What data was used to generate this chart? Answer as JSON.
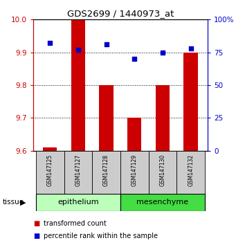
{
  "title": "GDS2699 / 1440973_at",
  "samples": [
    "GSM147125",
    "GSM147127",
    "GSM147128",
    "GSM147129",
    "GSM147130",
    "GSM147132"
  ],
  "bar_values": [
    9.61,
    10.0,
    9.8,
    9.7,
    9.8,
    9.9
  ],
  "dot_pct": [
    82,
    77,
    81,
    70,
    75,
    78
  ],
  "ylim": [
    9.6,
    10.0
  ],
  "y2lim": [
    0,
    100
  ],
  "yticks": [
    9.6,
    9.7,
    9.8,
    9.9,
    10.0
  ],
  "y2ticks": [
    0,
    25,
    50,
    75,
    100
  ],
  "bar_color": "#cc0000",
  "dot_color": "#0000cc",
  "tissue_groups": [
    {
      "label": "epithelium",
      "start": 0,
      "end": 2,
      "color": "#bbffbb"
    },
    {
      "label": "mesenchyme",
      "start": 3,
      "end": 5,
      "color": "#44dd44"
    }
  ],
  "legend_bar_label": "transformed count",
  "legend_dot_label": "percentile rank within the sample",
  "tissue_label": "tissue",
  "tick_color_left": "#cc0000",
  "tick_color_right": "#0000cc",
  "sample_bg_color": "#cccccc",
  "bar_width": 0.5
}
